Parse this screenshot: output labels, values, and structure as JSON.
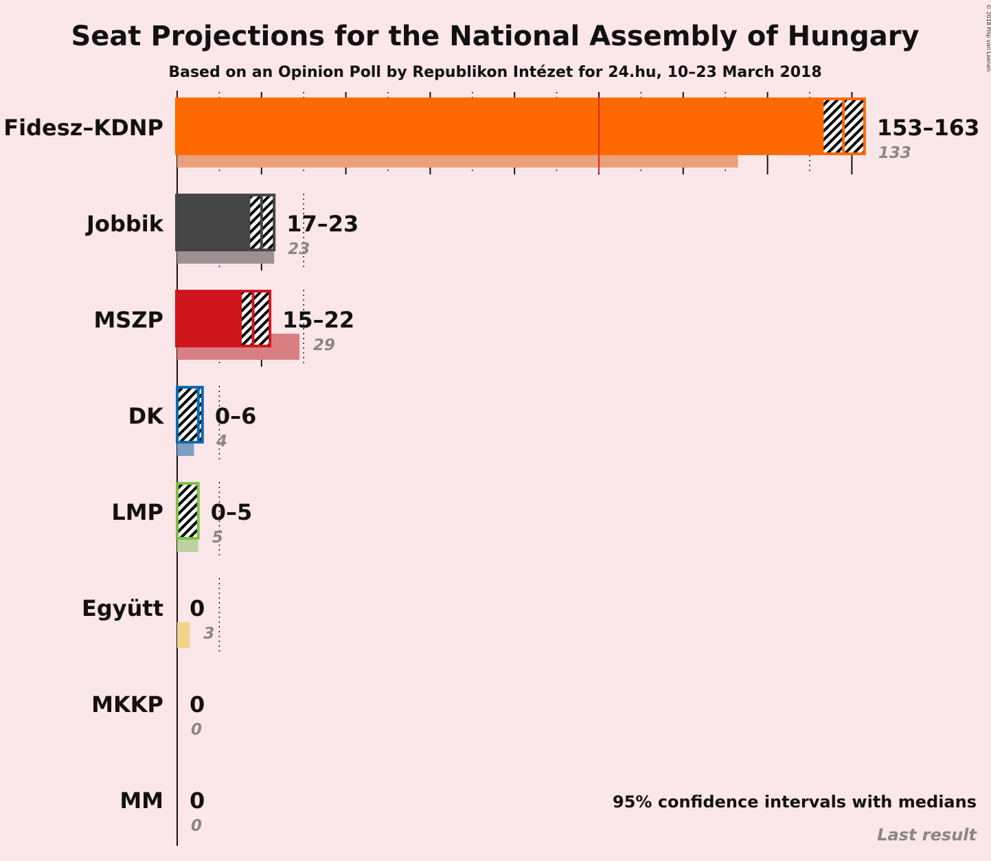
{
  "title": "Seat Projections for the National Assembly of Hungary",
  "subtitle": "Based on an Opinion Poll by Republikon Intézet for 24.hu, 10–23 March 2018",
  "copyright": "© 2018 Filip van Laenen",
  "legend": {
    "ci": "95% confidence intervals with medians",
    "last": "Last result"
  },
  "colors": {
    "background": "#fbe6e9",
    "majority_line": "#e8202a"
  },
  "chart_data": {
    "type": "bar",
    "orientation": "horizontal",
    "majority": 100,
    "xlim": [
      0,
      165
    ],
    "grid": true,
    "parties": [
      {
        "name": "Fidesz–KDNP",
        "low": 153,
        "median": 158,
        "high": 163,
        "range_label": "153–163",
        "last": 133,
        "last_label": "133",
        "color": "#ff6a00",
        "last_color": "#eaa07a"
      },
      {
        "name": "Jobbik",
        "low": 17,
        "median": 20,
        "high": 23,
        "range_label": "17–23",
        "last": 23,
        "last_label": "23",
        "color": "#464646",
        "last_color": "#9b9194"
      },
      {
        "name": "MSZP",
        "low": 15,
        "median": 18,
        "high": 22,
        "range_label": "15–22",
        "last": 29,
        "last_label": "29",
        "color": "#cf161d",
        "last_color": "#d97f84"
      },
      {
        "name": "DK",
        "low": 0,
        "median": 5,
        "high": 6,
        "range_label": "0–6",
        "last": 4,
        "last_label": "4",
        "color": "#0c6bb0",
        "last_color": "#7e9fc0"
      },
      {
        "name": "LMP",
        "low": 0,
        "median": 0,
        "high": 5,
        "range_label": "0–5",
        "last": 5,
        "last_label": "5",
        "color": "#7dc242",
        "last_color": "#bcd3a0"
      },
      {
        "name": "Együtt",
        "low": 0,
        "median": 0,
        "high": 0,
        "range_label": "0",
        "last": 3,
        "last_label": "3",
        "color": "#f4cc6b",
        "last_color": "#f2d38a"
      },
      {
        "name": "MKKP",
        "low": 0,
        "median": 0,
        "high": 0,
        "range_label": "0",
        "last": 0,
        "last_label": "0",
        "color": "#888888",
        "last_color": "#bbbbbb"
      },
      {
        "name": "MM",
        "low": 0,
        "median": 0,
        "high": 0,
        "range_label": "0",
        "last": 0,
        "last_label": "0",
        "color": "#888888",
        "last_color": "#bbbbbb"
      }
    ]
  }
}
